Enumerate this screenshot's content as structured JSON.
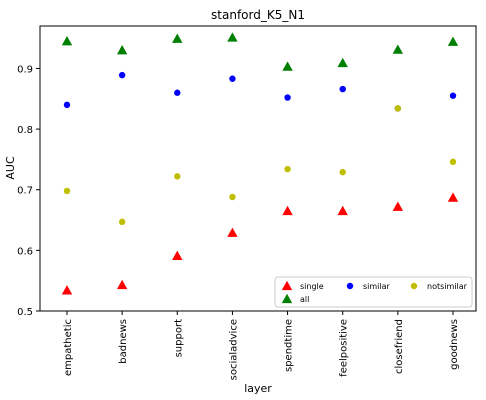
{
  "chart_data": {
    "type": "scatter",
    "title": "stanford_K5_N1",
    "xlabel": "layer",
    "ylabel": "AUC",
    "categories": [
      "empathetic",
      "badnews",
      "support",
      "socialadvice",
      "spendtime",
      "feelpositive",
      "closefriend",
      "goodnews"
    ],
    "ylim": [
      0.5,
      0.97
    ],
    "yticks": [
      "0.5",
      "0.6",
      "0.7",
      "0.8",
      "0.9"
    ],
    "grid": false,
    "legend_position": "lower-right",
    "series": [
      {
        "name": "single",
        "marker": "triangle",
        "color": "#ff0000",
        "values": [
          0.534,
          0.543,
          0.591,
          0.629,
          0.665,
          0.665,
          0.672,
          0.687
        ]
      },
      {
        "name": "all",
        "marker": "triangle",
        "color": "#008000",
        "values": [
          0.945,
          0.93,
          0.949,
          0.951,
          0.903,
          0.909,
          0.931,
          0.944
        ]
      },
      {
        "name": "similar",
        "marker": "circle",
        "color": "#0000ff",
        "values": [
          0.84,
          0.889,
          0.86,
          0.883,
          0.852,
          0.866,
          0.834,
          0.855
        ]
      },
      {
        "name": "notsimilar",
        "marker": "circle",
        "color": "#bfbf00",
        "values": [
          0.698,
          0.647,
          0.722,
          0.688,
          0.734,
          0.729,
          0.834,
          0.746
        ]
      }
    ]
  }
}
